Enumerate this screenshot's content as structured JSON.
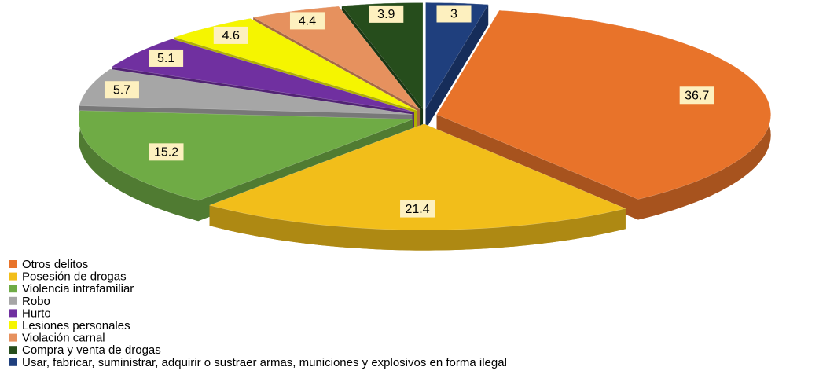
{
  "chart_data": {
    "type": "pie",
    "categories": [
      "Otros delitos",
      "Posesión de drogas",
      "Violencia intrafamiliar",
      "Robo",
      "Hurto",
      "Lesiones personales",
      "Violación carnal",
      "Compra y venta de drogas",
      "Usar, fabricar, suministrar, adquirir o sustraer armas, municiones y explosivos en forma ilegal"
    ],
    "values": [
      36.7,
      21.4,
      15.2,
      5.7,
      5.1,
      4.6,
      4.4,
      3.9,
      3.0
    ],
    "colors": [
      "#e8732a",
      "#f2be1a",
      "#6fab45",
      "#a6a6a6",
      "#7030a0",
      "#f5f500",
      "#e6915e",
      "#264d1c",
      "#1f3f7d"
    ],
    "legend": "bottom-left"
  }
}
